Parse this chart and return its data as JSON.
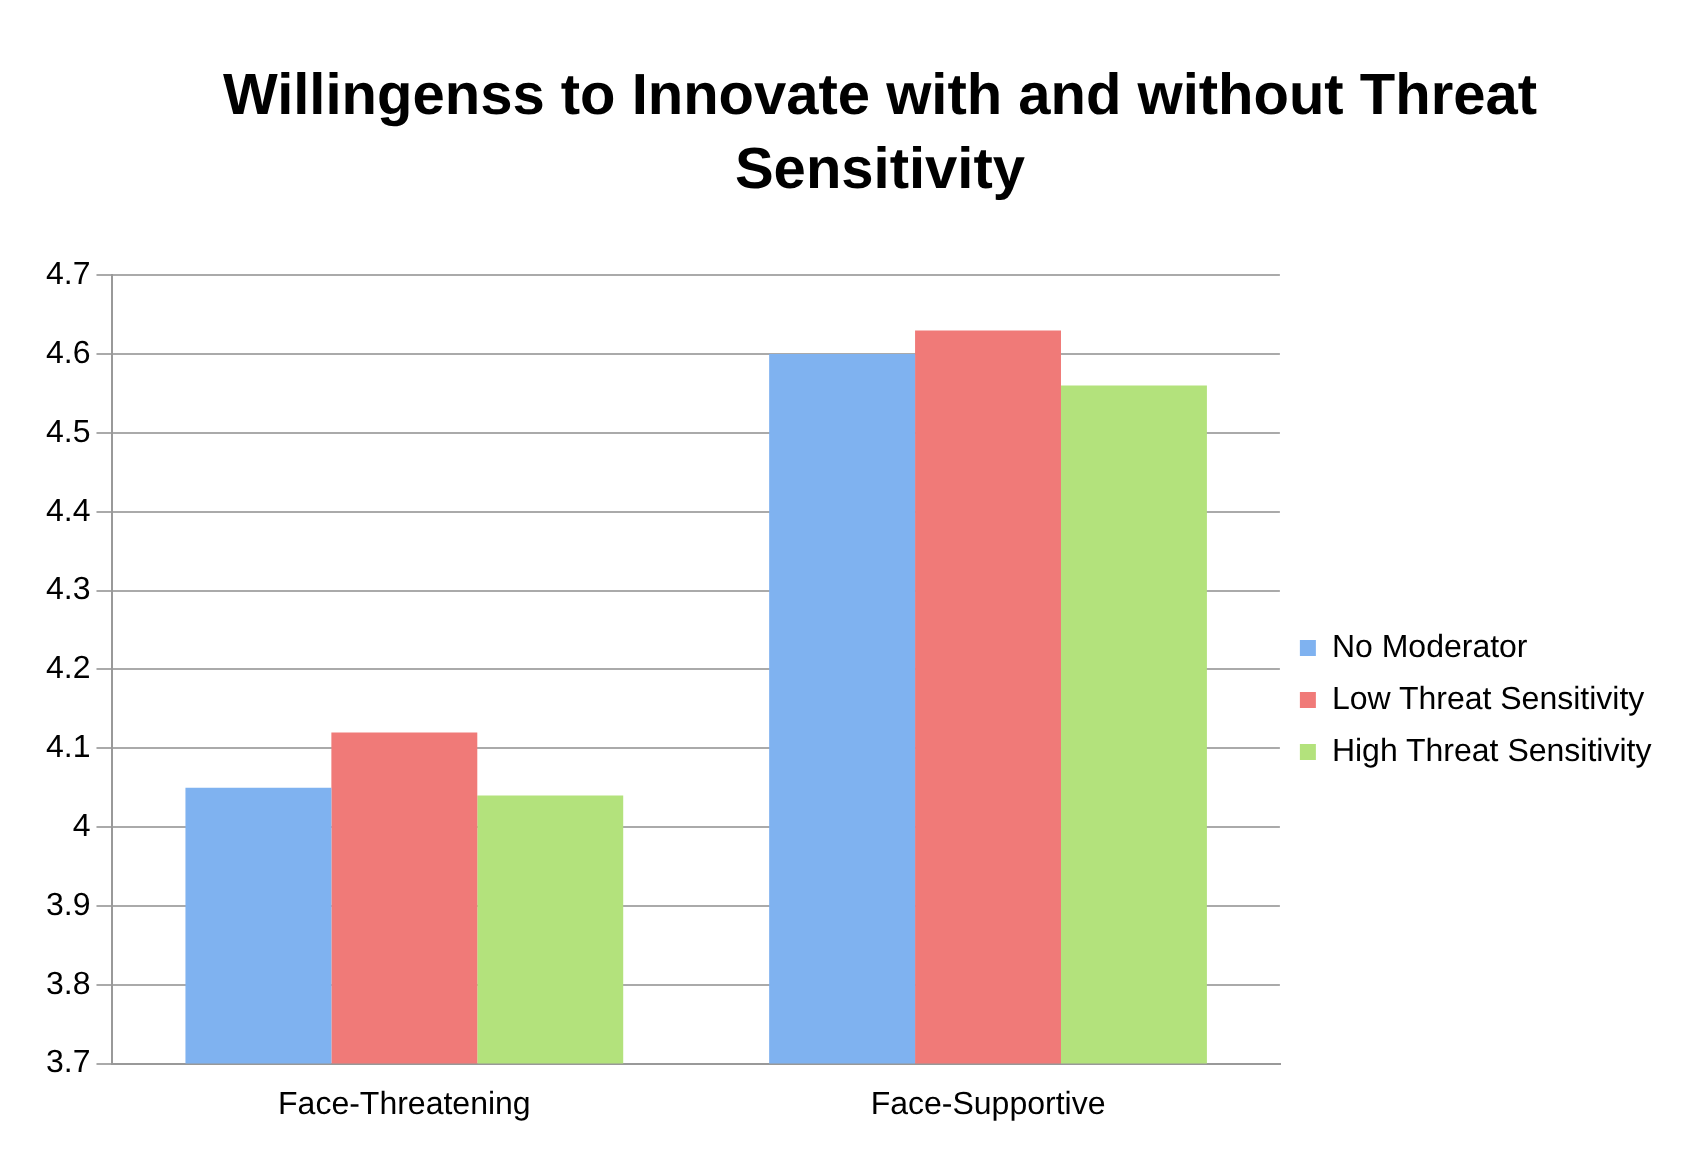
{
  "chart_data": {
    "type": "bar",
    "title": "Willingenss to Innovate with and without Threat Sensitivity",
    "categories": [
      "Face-Threatening",
      "Face-Supportive"
    ],
    "series": [
      {
        "name": "No Moderator",
        "color": "#7fb2f0",
        "values": [
          4.05,
          4.6
        ]
      },
      {
        "name": "Low Threat Sensitivity",
        "color": "#f07a78",
        "values": [
          4.12,
          4.63
        ]
      },
      {
        "name": "High Threat Sensitivity",
        "color": "#b3e27c",
        "values": [
          4.04,
          4.56
        ]
      }
    ],
    "ylim": [
      3.7,
      4.7
    ],
    "yticks": [
      3.7,
      3.8,
      3.9,
      4,
      4.1,
      4.2,
      4.3,
      4.4,
      4.5,
      4.6,
      4.7
    ],
    "grid": "y",
    "legend": "right"
  }
}
